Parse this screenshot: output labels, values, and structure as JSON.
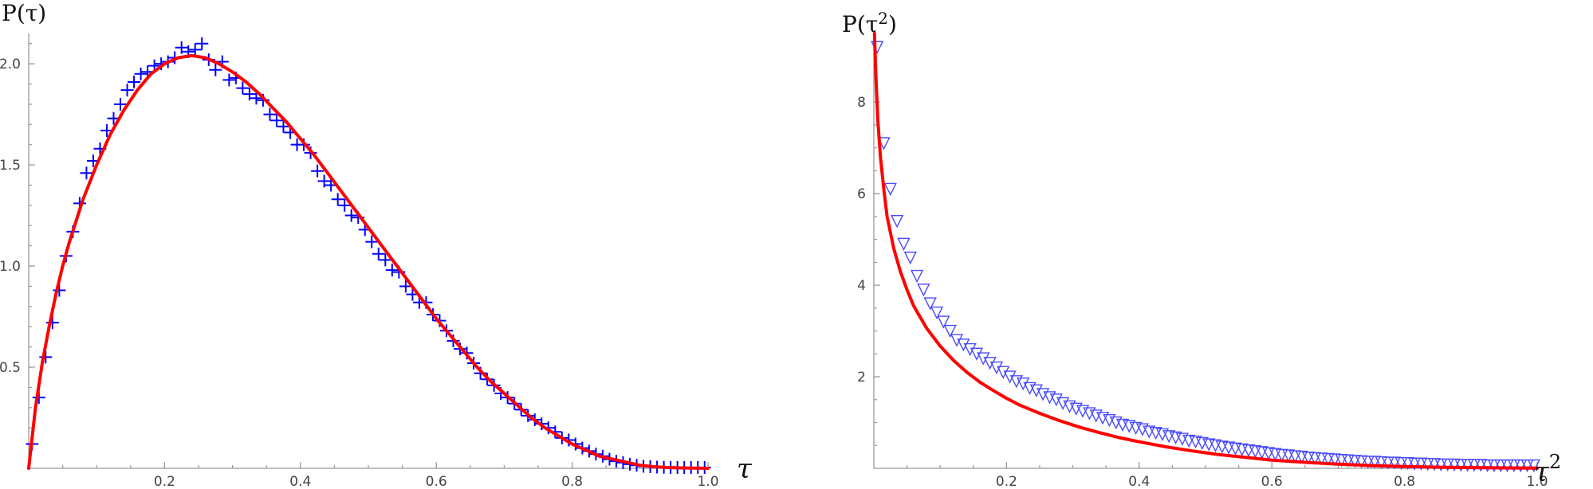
{
  "colors": {
    "markers": "#0000ff",
    "fit": "#ff0000",
    "axis": "#999999"
  },
  "chart_data": [
    {
      "type": "scatter",
      "ylabel": "P(τ)",
      "xlabel": "τ",
      "xlim": [
        0,
        1.0
      ],
      "ylim": [
        0,
        2.15
      ],
      "xticks": [
        "0.2",
        "0.4",
        "0.6",
        "0.8",
        "1.0"
      ],
      "yticks": [
        "0.5",
        "1.0",
        "1.5",
        "2.0"
      ],
      "grid": false,
      "legend": "none",
      "series": [
        {
          "marker": "plus",
          "x": [
            0.005,
            0.015,
            0.025,
            0.035,
            0.045,
            0.055,
            0.065,
            0.075,
            0.085,
            0.095,
            0.105,
            0.115,
            0.125,
            0.135,
            0.145,
            0.155,
            0.165,
            0.175,
            0.185,
            0.195,
            0.205,
            0.215,
            0.225,
            0.235,
            0.245,
            0.255,
            0.265,
            0.275,
            0.285,
            0.295,
            0.305,
            0.315,
            0.325,
            0.335,
            0.345,
            0.355,
            0.365,
            0.375,
            0.385,
            0.395,
            0.405,
            0.415,
            0.425,
            0.435,
            0.445,
            0.455,
            0.465,
            0.475,
            0.485,
            0.495,
            0.505,
            0.515,
            0.525,
            0.535,
            0.545,
            0.555,
            0.565,
            0.575,
            0.585,
            0.595,
            0.605,
            0.615,
            0.625,
            0.635,
            0.645,
            0.655,
            0.665,
            0.675,
            0.685,
            0.695,
            0.705,
            0.715,
            0.725,
            0.735,
            0.745,
            0.755,
            0.765,
            0.775,
            0.785,
            0.795,
            0.805,
            0.815,
            0.825,
            0.835,
            0.845,
            0.855,
            0.865,
            0.875,
            0.885,
            0.895,
            0.905,
            0.915,
            0.925,
            0.935,
            0.945,
            0.955,
            0.965,
            0.975,
            0.985,
            0.995
          ],
          "y": [
            0.12,
            0.35,
            0.55,
            0.72,
            0.88,
            1.05,
            1.17,
            1.31,
            1.46,
            1.52,
            1.58,
            1.67,
            1.73,
            1.8,
            1.87,
            1.91,
            1.95,
            1.96,
            1.99,
            2.0,
            2.01,
            2.03,
            2.08,
            2.06,
            2.07,
            2.1,
            2.02,
            1.97,
            2.01,
            1.92,
            1.93,
            1.88,
            1.85,
            1.83,
            1.82,
            1.75,
            1.72,
            1.69,
            1.66,
            1.6,
            1.6,
            1.56,
            1.47,
            1.42,
            1.4,
            1.33,
            1.3,
            1.25,
            1.24,
            1.18,
            1.12,
            1.06,
            1.03,
            0.98,
            0.97,
            0.9,
            0.86,
            0.82,
            0.82,
            0.76,
            0.73,
            0.68,
            0.63,
            0.59,
            0.57,
            0.52,
            0.47,
            0.44,
            0.41,
            0.37,
            0.35,
            0.32,
            0.29,
            0.26,
            0.24,
            0.22,
            0.2,
            0.18,
            0.15,
            0.14,
            0.12,
            0.1,
            0.085,
            0.07,
            0.06,
            0.045,
            0.035,
            0.028,
            0.02,
            0.015,
            0.01,
            0.008,
            0.006,
            0.005,
            0.004,
            0.004,
            0.004,
            0.004,
            0.004,
            0.004
          ]
        },
        {
          "marker": "line",
          "x": [
            0,
            0.01,
            0.02,
            0.03,
            0.04,
            0.05,
            0.06,
            0.08,
            0.1,
            0.12,
            0.14,
            0.16,
            0.18,
            0.2,
            0.22,
            0.24,
            0.26,
            0.28,
            0.3,
            0.32,
            0.34,
            0.36,
            0.38,
            0.4,
            0.42,
            0.44,
            0.46,
            0.48,
            0.5,
            0.52,
            0.54,
            0.56,
            0.58,
            0.6,
            0.62,
            0.64,
            0.66,
            0.68,
            0.7,
            0.72,
            0.74,
            0.76,
            0.78,
            0.8,
            0.82,
            0.84,
            0.86,
            0.88,
            0.9,
            0.92,
            0.94,
            0.96,
            0.98,
            1.0
          ],
          "y": [
            0,
            0.3,
            0.52,
            0.7,
            0.86,
            1.0,
            1.12,
            1.33,
            1.5,
            1.65,
            1.77,
            1.87,
            1.95,
            2.0,
            2.03,
            2.04,
            2.03,
            2.0,
            1.96,
            1.91,
            1.85,
            1.78,
            1.71,
            1.63,
            1.55,
            1.46,
            1.37,
            1.28,
            1.19,
            1.1,
            1.01,
            0.92,
            0.83,
            0.74,
            0.66,
            0.58,
            0.5,
            0.43,
            0.37,
            0.31,
            0.25,
            0.2,
            0.16,
            0.12,
            0.09,
            0.06,
            0.045,
            0.03,
            0.015,
            0.008,
            0.004,
            0.002,
            0.001,
            0.0
          ]
        }
      ]
    },
    {
      "type": "scatter",
      "ylabel": "P(τ2)",
      "xlabel": "τ2",
      "xlim": [
        0,
        1.0
      ],
      "ylim": [
        0,
        9.5
      ],
      "xticks": [
        "0.2",
        "0.4",
        "0.6",
        "0.8",
        "1.0"
      ],
      "yticks": [
        "2",
        "4",
        "6",
        "8"
      ],
      "grid": false,
      "legend": "none",
      "series": [
        {
          "marker": "triangle-down",
          "x": [
            0.005,
            0.015,
            0.025,
            0.035,
            0.045,
            0.055,
            0.065,
            0.075,
            0.085,
            0.095,
            0.105,
            0.115,
            0.125,
            0.135,
            0.145,
            0.155,
            0.165,
            0.175,
            0.185,
            0.195,
            0.205,
            0.215,
            0.225,
            0.235,
            0.245,
            0.255,
            0.265,
            0.275,
            0.285,
            0.295,
            0.305,
            0.315,
            0.325,
            0.335,
            0.345,
            0.355,
            0.365,
            0.375,
            0.385,
            0.395,
            0.405,
            0.415,
            0.425,
            0.435,
            0.445,
            0.455,
            0.465,
            0.475,
            0.485,
            0.495,
            0.505,
            0.515,
            0.525,
            0.535,
            0.545,
            0.555,
            0.565,
            0.575,
            0.585,
            0.595,
            0.605,
            0.615,
            0.625,
            0.635,
            0.645,
            0.655,
            0.665,
            0.675,
            0.685,
            0.695,
            0.705,
            0.715,
            0.725,
            0.735,
            0.745,
            0.755,
            0.765,
            0.775,
            0.785,
            0.795,
            0.805,
            0.815,
            0.825,
            0.835,
            0.845,
            0.855,
            0.865,
            0.875,
            0.885,
            0.895,
            0.905,
            0.915,
            0.925,
            0.935,
            0.945,
            0.955,
            0.965,
            0.975,
            0.985,
            0.995
          ],
          "y": [
            9.2,
            7.1,
            6.1,
            5.4,
            4.9,
            4.6,
            4.2,
            3.9,
            3.6,
            3.4,
            3.2,
            3.0,
            2.8,
            2.7,
            2.6,
            2.5,
            2.4,
            2.3,
            2.2,
            2.1,
            2.0,
            1.9,
            1.85,
            1.75,
            1.7,
            1.62,
            1.55,
            1.5,
            1.42,
            1.35,
            1.3,
            1.25,
            1.2,
            1.15,
            1.1,
            1.05,
            1.0,
            0.95,
            0.92,
            0.88,
            0.85,
            0.8,
            0.77,
            0.74,
            0.7,
            0.67,
            0.64,
            0.6,
            0.58,
            0.55,
            0.52,
            0.5,
            0.47,
            0.45,
            0.43,
            0.41,
            0.39,
            0.37,
            0.35,
            0.33,
            0.31,
            0.29,
            0.28,
            0.26,
            0.25,
            0.23,
            0.22,
            0.21,
            0.2,
            0.19,
            0.18,
            0.17,
            0.16,
            0.15,
            0.14,
            0.14,
            0.13,
            0.12,
            0.12,
            0.11,
            0.11,
            0.1,
            0.1,
            0.09,
            0.09,
            0.08,
            0.08,
            0.08,
            0.07,
            0.07,
            0.07,
            0.07,
            0.06,
            0.06,
            0.06,
            0.06,
            0.06,
            0.06,
            0.06,
            0.06
          ]
        },
        {
          "marker": "line",
          "x": [
            0.001,
            0.003,
            0.006,
            0.01,
            0.015,
            0.02,
            0.03,
            0.04,
            0.05,
            0.06,
            0.08,
            0.1,
            0.12,
            0.14,
            0.16,
            0.18,
            0.2,
            0.22,
            0.25,
            0.28,
            0.31,
            0.34,
            0.37,
            0.4,
            0.44,
            0.48,
            0.52,
            0.56,
            0.6,
            0.65,
            0.7,
            0.75,
            0.8,
            0.85,
            0.9,
            0.95,
            1.0
          ],
          "y": [
            9.5,
            8.6,
            7.6,
            6.8,
            6.1,
            5.5,
            4.8,
            4.3,
            3.9,
            3.55,
            3.05,
            2.67,
            2.36,
            2.1,
            1.88,
            1.7,
            1.53,
            1.38,
            1.2,
            1.04,
            0.9,
            0.78,
            0.67,
            0.58,
            0.47,
            0.38,
            0.3,
            0.24,
            0.18,
            0.13,
            0.09,
            0.06,
            0.04,
            0.025,
            0.015,
            0.008,
            0.004
          ]
        }
      ]
    }
  ]
}
